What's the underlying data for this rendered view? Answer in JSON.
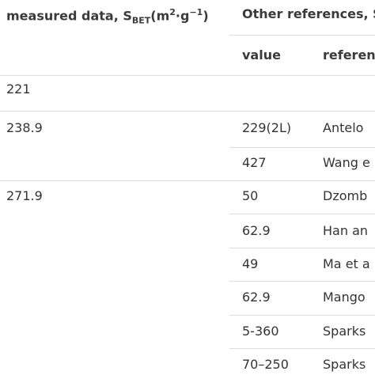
{
  "header": {
    "measured": {
      "text": "measured data, S",
      "sub": "BET",
      "mid": "(m",
      "sup1": "2",
      "mid2": "·g",
      "sup2": "−1",
      "end": ")"
    },
    "other": "Other references, S"
  },
  "subheader": {
    "value": "value",
    "reference": "referen"
  },
  "table": {
    "rows": [
      [
        "221",
        null,
        null
      ],
      [
        "238.9",
        "229(2L)",
        "Antelo"
      ],
      [
        null,
        "427",
        "Wang e"
      ],
      [
        "271.9",
        "50",
        "Dzomb"
      ],
      [
        null,
        "62.9",
        "Han an"
      ],
      [
        null,
        "49",
        "Ma et a"
      ],
      [
        null,
        "62.9",
        "Mango"
      ],
      [
        null,
        "5-360",
        "Sparks"
      ],
      [
        null,
        "70–250",
        "Sparks"
      ]
    ]
  }
}
